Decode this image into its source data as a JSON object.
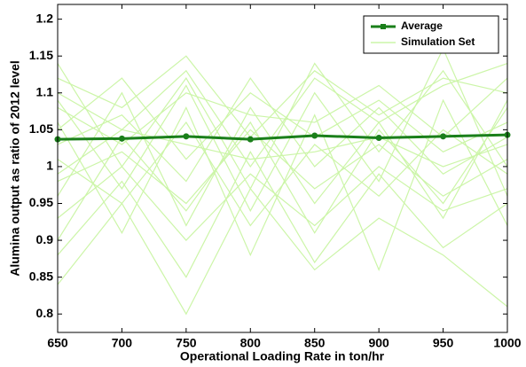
{
  "chart_data": {
    "type": "line",
    "x_label": "Operational Loading Rate in ton/hr",
    "y_label": "Alumina output as ratio of 2012 level",
    "x": [
      650,
      700,
      750,
      800,
      850,
      900,
      950,
      1000
    ],
    "xlim": [
      650,
      1000
    ],
    "xticks": [
      650,
      700,
      750,
      800,
      850,
      900,
      950,
      1000
    ],
    "ylim": [
      0.775,
      1.22
    ],
    "yticks": [
      0.8,
      0.85,
      0.9,
      0.95,
      1,
      1.05,
      1.1,
      1.15,
      1.2
    ],
    "legend": "upper right",
    "series": [
      {
        "name": "Average",
        "color": "#1a7f1a",
        "values": [
          1.037,
          1.038,
          1.041,
          1.037,
          1.042,
          1.039,
          1.041,
          1.043
        ]
      },
      {
        "name": "Simulation Set",
        "color": "#ccf5a8",
        "lines": [
          [
            1.1,
            1.05,
            1.13,
            1.0,
            1.12,
            1.06,
            1.11,
            1.14
          ],
          [
            0.98,
            1.02,
            0.95,
            1.05,
            0.97,
            1.03,
            0.96,
            1.01
          ],
          [
            1.05,
            1.12,
            1.01,
            1.1,
            1.04,
            1.09,
            1.02,
            1.06
          ],
          [
            0.93,
            1.0,
            0.9,
            0.99,
            0.92,
            1.0,
            0.94,
            0.97
          ],
          [
            1.12,
            1.08,
            1.15,
            1.04,
            1.13,
            1.07,
            1.12,
            1.1
          ],
          [
            1.01,
            0.95,
            1.06,
            0.92,
            1.03,
            0.96,
            1.05,
            0.99
          ],
          [
            0.88,
            0.98,
            0.85,
            1.02,
            0.87,
            0.99,
            0.89,
            0.95
          ],
          [
            1.08,
            1.03,
            1.1,
            1.07,
            1.06,
            1.11,
            1.04,
            1.12
          ],
          [
            1.03,
            1.07,
            0.98,
            1.12,
            1.0,
            1.08,
            0.99,
            1.04
          ],
          [
            0.96,
            1.1,
            0.92,
            1.08,
            0.95,
            1.06,
            0.93,
            1.09
          ],
          [
            1.14,
            1.0,
            1.12,
            0.97,
            1.14,
            1.02,
            1.13,
            1.0
          ],
          [
            0.84,
            0.95,
            0.8,
            0.97,
            0.86,
            0.93,
            0.88,
            0.81
          ],
          [
            1.06,
            0.91,
            1.08,
            0.88,
            1.07,
            0.86,
            1.09,
            0.92
          ],
          [
            0.99,
            1.05,
            1.03,
            1.01,
            1.02,
            1.04,
            1.0,
            1.03
          ],
          [
            1.09,
            0.97,
            1.11,
            0.94,
            1.1,
            0.98,
            1.16,
            0.96
          ],
          [
            0.9,
            1.04,
            0.94,
            1.06,
            0.91,
            1.05,
            0.95,
            1.08
          ]
        ]
      }
    ]
  }
}
